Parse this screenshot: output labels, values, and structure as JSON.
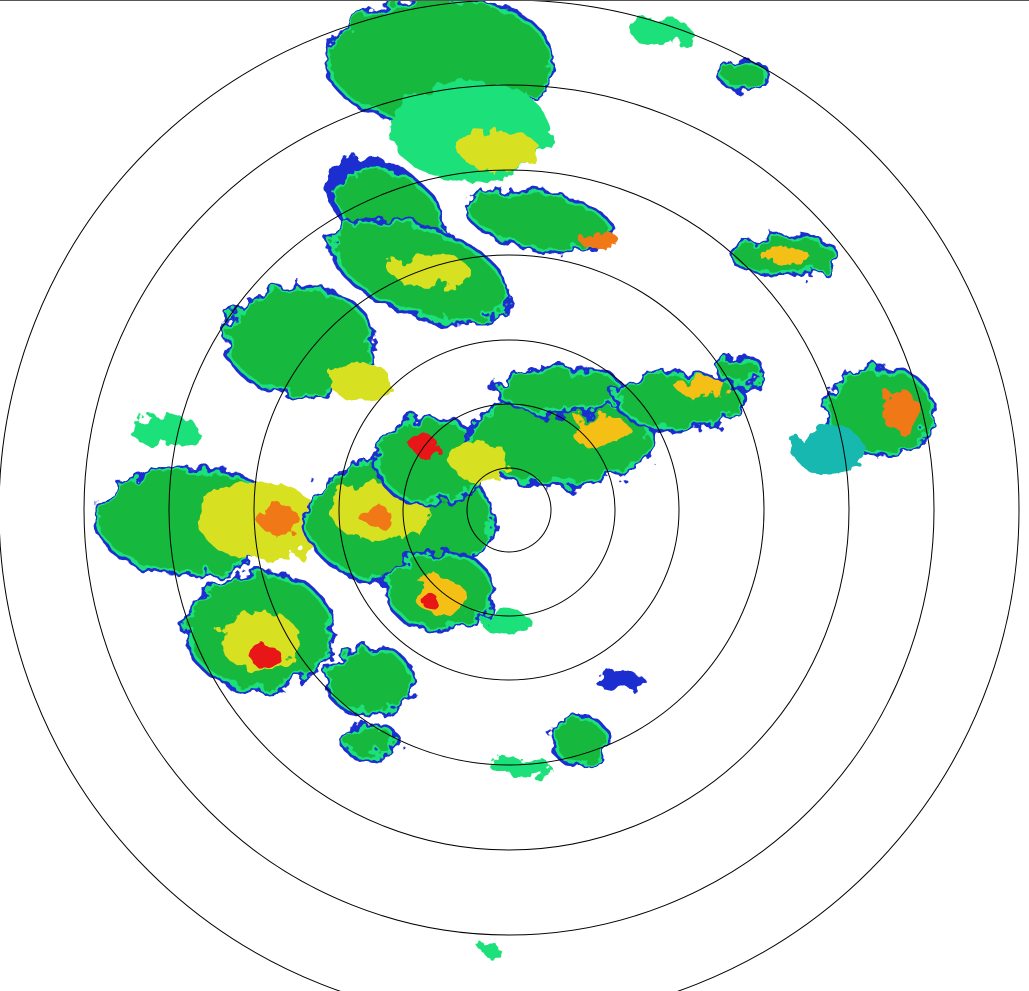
{
  "radar": {
    "ring_color": "#000000",
    "background": "#ffffff",
    "reflectivity_colors": [
      "#1f2fd0",
      "#19b8b0",
      "#1ee07a",
      "#18b83c",
      "#169a2c",
      "#d8e020",
      "#f5c018",
      "#f07818",
      "#e81818"
    ]
  }
}
